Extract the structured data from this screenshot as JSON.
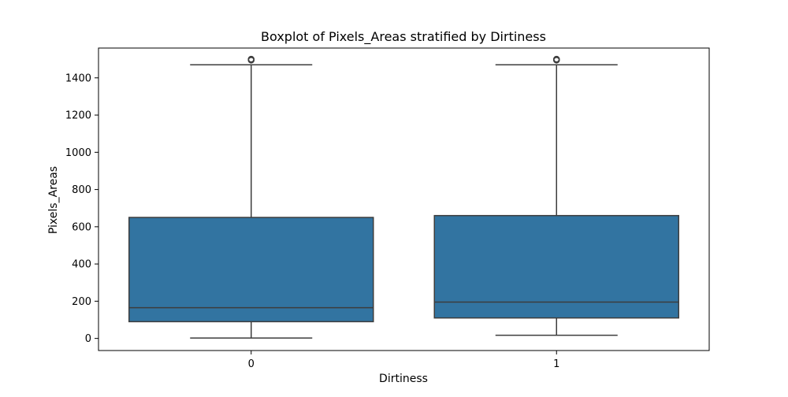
{
  "chart_data": {
    "type": "boxplot",
    "title": "Boxplot of Pixels_Areas stratified by Dirtiness",
    "xlabel": "Dirtiness",
    "ylabel": "Pixels_Areas",
    "categories": [
      "0",
      "1"
    ],
    "ylim": [
      -65,
      1560
    ],
    "yticks": [
      0,
      200,
      400,
      600,
      800,
      1000,
      1200,
      1400
    ],
    "grid": false,
    "box_color": "#3274a1",
    "line_color": "#3d3d3d",
    "boxes": [
      {
        "category": "0",
        "whisker_low": 2,
        "q1": 90,
        "median": 165,
        "q3": 650,
        "whisker_high": 1470,
        "outliers": [
          1495,
          1498,
          1500
        ]
      },
      {
        "category": "1",
        "whisker_low": 17,
        "q1": 110,
        "median": 195,
        "q3": 660,
        "whisker_high": 1470,
        "outliers": [
          1495,
          1498,
          1500
        ]
      }
    ]
  }
}
